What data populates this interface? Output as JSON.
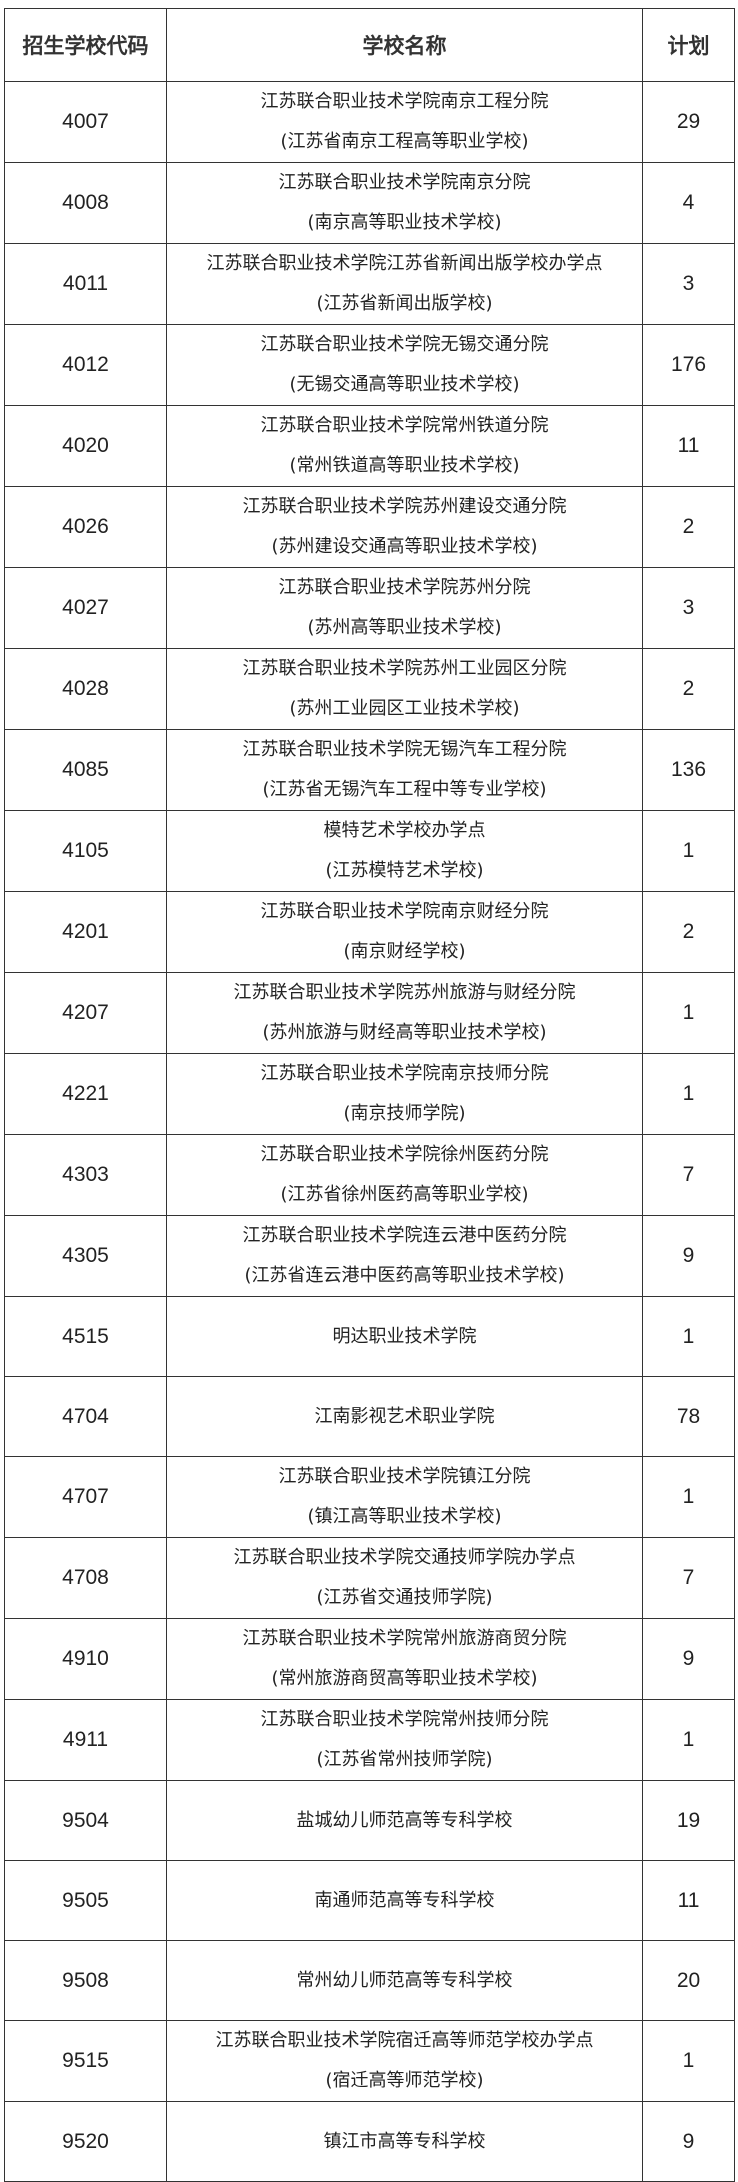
{
  "table": {
    "headers": [
      "招生学校代码",
      "学校名称",
      "计划"
    ],
    "rows": [
      {
        "code": "4007",
        "name": "江苏联合职业技术学院南京工程分院",
        "sub": "(江苏省南京工程高等职业学校)",
        "plan": "29"
      },
      {
        "code": "4008",
        "name": "江苏联合职业技术学院南京分院",
        "sub": "(南京高等职业技术学校)",
        "plan": "4"
      },
      {
        "code": "4011",
        "name": "江苏联合职业技术学院江苏省新闻出版学校办学点",
        "sub": "(江苏省新闻出版学校)",
        "plan": "3"
      },
      {
        "code": "4012",
        "name": "江苏联合职业技术学院无锡交通分院",
        "sub": "(无锡交通高等职业技术学校)",
        "plan": "176"
      },
      {
        "code": "4020",
        "name": "江苏联合职业技术学院常州铁道分院",
        "sub": "(常州铁道高等职业技术学校)",
        "plan": "11"
      },
      {
        "code": "4026",
        "name": "江苏联合职业技术学院苏州建设交通分院",
        "sub": "(苏州建设交通高等职业技术学校)",
        "plan": "2"
      },
      {
        "code": "4027",
        "name": "江苏联合职业技术学院苏州分院",
        "sub": "(苏州高等职业技术学校)",
        "plan": "3"
      },
      {
        "code": "4028",
        "name": "江苏联合职业技术学院苏州工业园区分院",
        "sub": "(苏州工业园区工业技术学校)",
        "plan": "2"
      },
      {
        "code": "4085",
        "name": "江苏联合职业技术学院无锡汽车工程分院",
        "sub": "(江苏省无锡汽车工程中等专业学校)",
        "plan": "136"
      },
      {
        "code": "4105",
        "name": "模特艺术学校办学点",
        "sub": "(江苏模特艺术学校)",
        "plan": "1"
      },
      {
        "code": "4201",
        "name": "江苏联合职业技术学院南京财经分院",
        "sub": "(南京财经学校)",
        "plan": "2"
      },
      {
        "code": "4207",
        "name": "江苏联合职业技术学院苏州旅游与财经分院",
        "sub": "(苏州旅游与财经高等职业技术学校)",
        "plan": "1"
      },
      {
        "code": "4221",
        "name": "江苏联合职业技术学院南京技师分院",
        "sub": "(南京技师学院)",
        "plan": "1"
      },
      {
        "code": "4303",
        "name": "江苏联合职业技术学院徐州医药分院",
        "sub": "(江苏省徐州医药高等职业学校)",
        "plan": "7"
      },
      {
        "code": "4305",
        "name": "江苏联合职业技术学院连云港中医药分院",
        "sub": "(江苏省连云港中医药高等职业技术学校)",
        "plan": "9"
      },
      {
        "code": "4515",
        "name": "明达职业技术学院",
        "sub": "",
        "plan": "1"
      },
      {
        "code": "4704",
        "name": "江南影视艺术职业学院",
        "sub": "",
        "plan": "78"
      },
      {
        "code": "4707",
        "name": "江苏联合职业技术学院镇江分院",
        "sub": "(镇江高等职业技术学校)",
        "plan": "1"
      },
      {
        "code": "4708",
        "name": "江苏联合职业技术学院交通技师学院办学点",
        "sub": "(江苏省交通技师学院)",
        "plan": "7"
      },
      {
        "code": "4910",
        "name": "江苏联合职业技术学院常州旅游商贸分院",
        "sub": "(常州旅游商贸高等职业技术学校)",
        "plan": "9"
      },
      {
        "code": "4911",
        "name": "江苏联合职业技术学院常州技师分院",
        "sub": "(江苏省常州技师学院)",
        "plan": "1"
      },
      {
        "code": "9504",
        "name": "盐城幼儿师范高等专科学校",
        "sub": "",
        "plan": "19"
      },
      {
        "code": "9505",
        "name": "南通师范高等专科学校",
        "sub": "",
        "plan": "11"
      },
      {
        "code": "9508",
        "name": "常州幼儿师范高等专科学校",
        "sub": "",
        "plan": "20"
      },
      {
        "code": "9515",
        "name": "江苏联合职业技术学院宿迁高等师范学校办学点",
        "sub": "(宿迁高等师范学校)",
        "plan": "1"
      },
      {
        "code": "9520",
        "name": "镇江市高等专科学校",
        "sub": "",
        "plan": "9"
      }
    ]
  }
}
